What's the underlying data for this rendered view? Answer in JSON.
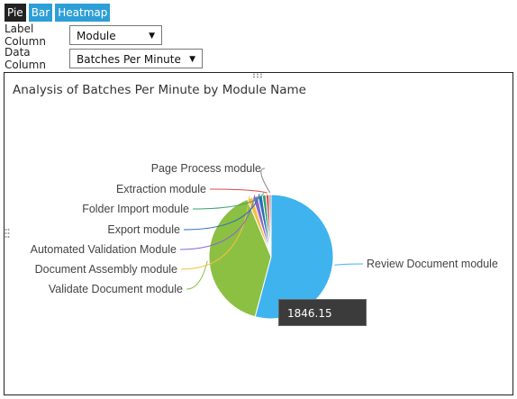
{
  "tabs": [
    {
      "label": "Pie",
      "active": true
    },
    {
      "label": "Bar",
      "active": false
    },
    {
      "label": "Heatmap",
      "active": false
    }
  ],
  "controls": {
    "label_column": {
      "label": "Label Column",
      "value": "Module Name"
    },
    "data_column": {
      "label": "Data Column",
      "value": "Batches Per Minute"
    }
  },
  "tooltip": {
    "value": "1846.15"
  },
  "chart_data": {
    "type": "pie",
    "title": "Analysis of Batches Per Minute by Module Name",
    "slices": [
      {
        "label": "Review Document module",
        "value": 1846.15,
        "color": "#3fb3ee"
      },
      {
        "label": "Validate Document module",
        "value": 1350,
        "color": "#8bc043"
      },
      {
        "label": "Document Assembly module",
        "value": 50,
        "color": "#f5c044"
      },
      {
        "label": "Automated Validation Module",
        "value": 45,
        "color": "#8a66c9"
      },
      {
        "label": "Export module",
        "value": 40,
        "color": "#2a6fb5"
      },
      {
        "label": "Folder Import module",
        "value": 32,
        "color": "#34a06e"
      },
      {
        "label": "Extraction module",
        "value": 28,
        "color": "#e04848"
      },
      {
        "label": "Page Process module",
        "value": 18,
        "color": "#888888"
      }
    ]
  }
}
